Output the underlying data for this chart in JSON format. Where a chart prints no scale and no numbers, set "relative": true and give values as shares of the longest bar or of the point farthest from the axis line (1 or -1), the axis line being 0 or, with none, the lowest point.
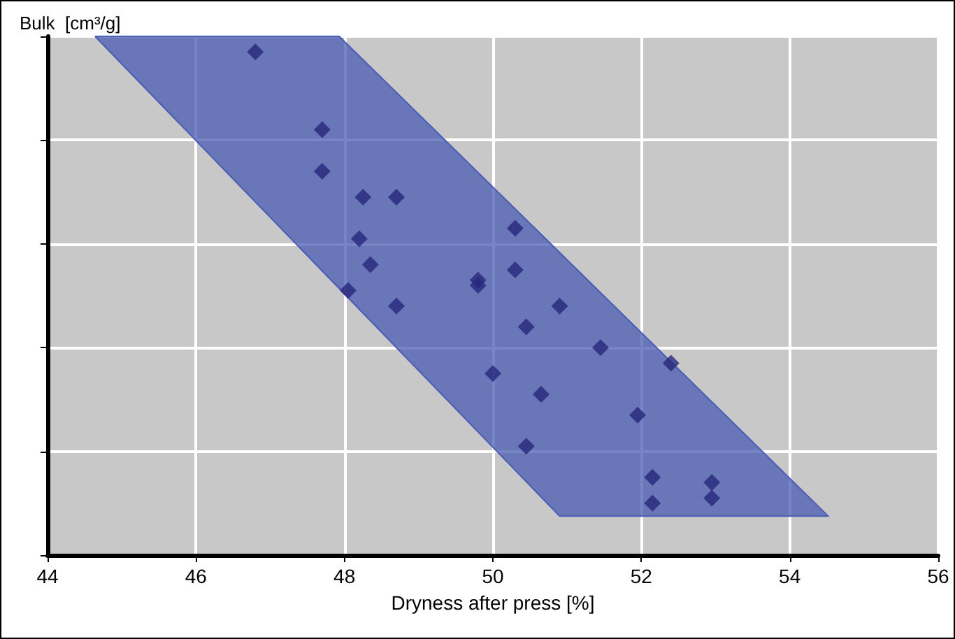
{
  "chart_data": {
    "type": "scatter",
    "relative": true,
    "ylabel": "Bulk  [cm³/g]",
    "xlabel": "Dryness after press [%]",
    "xlim": [
      44,
      56
    ],
    "xticks": [
      44,
      46,
      48,
      50,
      52,
      54,
      56
    ],
    "grid": true,
    "marker": "diamond",
    "series": [
      {
        "type": "area",
        "marker": "none",
        "color": "#4a5cb4",
        "x": [
          44.64,
          47.93,
          54.52,
          50.9,
          44.64
        ],
        "values": [
          1,
          1,
          0.075,
          0.075,
          1
        ]
      },
      {
        "color": "#27277a",
        "x": [
          46.8,
          47.7,
          47.7,
          48.25,
          48.7,
          48.2,
          48.35,
          48.05,
          48.7,
          49.8,
          49.8,
          50.3,
          50.3,
          50.9,
          50.45,
          51.45,
          52.4,
          50.0,
          50.65,
          51.95,
          50.45,
          52.15,
          52.15,
          52.95,
          52.95
        ],
        "values": [
          0.97,
          0.82,
          0.74,
          0.69,
          0.69,
          0.61,
          0.56,
          0.51,
          0.48,
          0.53,
          0.52,
          0.63,
          0.55,
          0.48,
          0.44,
          0.4,
          0.37,
          0.35,
          0.31,
          0.27,
          0.21,
          0.15,
          0.1,
          0.14,
          0.11
        ]
      }
    ]
  }
}
